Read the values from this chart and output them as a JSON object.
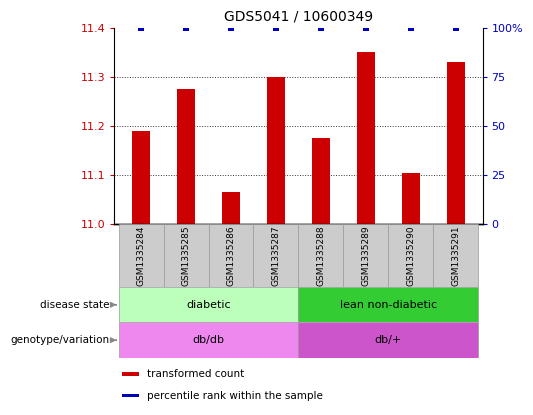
{
  "title": "GDS5041 / 10600349",
  "samples": [
    "GSM1335284",
    "GSM1335285",
    "GSM1335286",
    "GSM1335287",
    "GSM1335288",
    "GSM1335289",
    "GSM1335290",
    "GSM1335291"
  ],
  "transformed_counts": [
    11.19,
    11.275,
    11.065,
    11.3,
    11.175,
    11.35,
    11.105,
    11.33
  ],
  "percentile_ranks": [
    100,
    100,
    100,
    100,
    100,
    100,
    100,
    100
  ],
  "ylim_left": [
    11.0,
    11.4
  ],
  "ylim_right": [
    0,
    100
  ],
  "yticks_left": [
    11.0,
    11.1,
    11.2,
    11.3,
    11.4
  ],
  "yticks_right": [
    0,
    25,
    50,
    75,
    100
  ],
  "bar_color": "#cc0000",
  "percentile_color": "#0000bb",
  "disease_state_groups": [
    {
      "label": "diabetic",
      "start": 0,
      "end": 4,
      "color": "#bbffbb"
    },
    {
      "label": "lean non-diabetic",
      "start": 4,
      "end": 8,
      "color": "#33cc33"
    }
  ],
  "genotype_groups": [
    {
      "label": "db/db",
      "start": 0,
      "end": 4,
      "color": "#ee88ee"
    },
    {
      "label": "db/+",
      "start": 4,
      "end": 8,
      "color": "#cc55cc"
    }
  ],
  "legend_items": [
    {
      "label": "transformed count",
      "color": "#cc0000"
    },
    {
      "label": "percentile rank within the sample",
      "color": "#0000bb"
    }
  ],
  "row_labels": [
    "disease state",
    "genotype/variation"
  ],
  "title_fontsize": 10,
  "tick_fontsize": 8,
  "label_fontsize": 8,
  "bar_width": 0.4,
  "background_color": "#ffffff",
  "left_yaxis_color": "#cc0000",
  "right_yaxis_color": "#0000bb",
  "sample_box_color": "#cccccc",
  "sample_box_edge": "#999999",
  "arrow_color": "#888888"
}
